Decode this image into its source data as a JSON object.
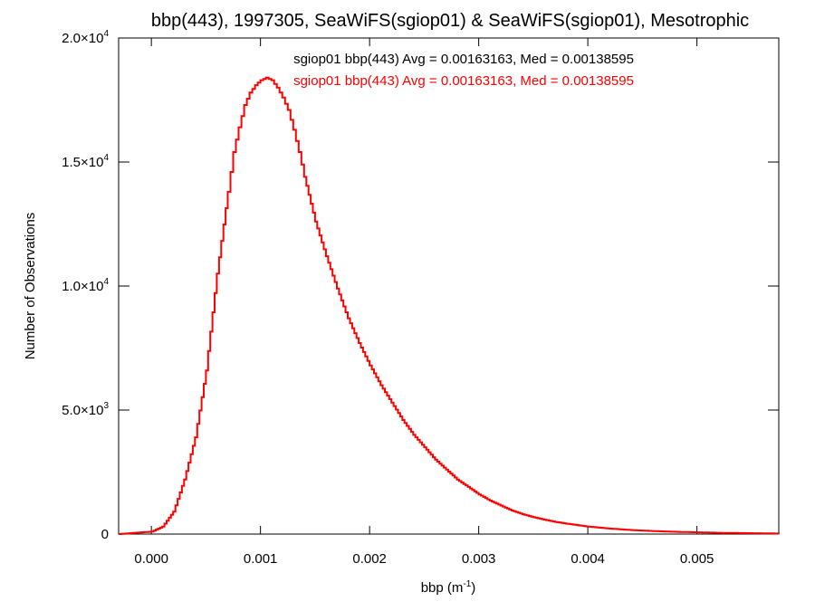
{
  "chart_data": {
    "type": "line",
    "title": "bbp(443), 1997305, SeaWiFS(sgiop01) & SeaWiFS(sgiop01), Mesotrophic",
    "xlabel": "bbp (m",
    "xlabel_sup": "-1",
    "xlabel_close": ")",
    "ylabel": "Number of Observations",
    "xlim": [
      -0.0003,
      0.00575
    ],
    "ylim": [
      0,
      20000
    ],
    "grid": false,
    "x_ticks": [
      {
        "value": 0.0,
        "label": "0.000"
      },
      {
        "value": 0.001,
        "label": "0.001"
      },
      {
        "value": 0.002,
        "label": "0.002"
      },
      {
        "value": 0.003,
        "label": "0.003"
      },
      {
        "value": 0.004,
        "label": "0.004"
      },
      {
        "value": 0.005,
        "label": "0.005"
      }
    ],
    "y_ticks": [
      {
        "value": 0,
        "label": "0",
        "exp": ""
      },
      {
        "value": 5000,
        "label": "5.0×10",
        "exp": "3"
      },
      {
        "value": 10000,
        "label": "1.0×10",
        "exp": "4"
      },
      {
        "value": 15000,
        "label": "1.5×10",
        "exp": "4"
      },
      {
        "value": 20000,
        "label": "2.0×10",
        "exp": "4"
      }
    ],
    "legend": [
      {
        "text": "sgiop01 bbp(443) Avg = 0.00163163, Med = 0.00138595",
        "color": "#000000"
      },
      {
        "text": "sgiop01 bbp(443) Avg = 0.00163163, Med = 0.00138595",
        "color": "#ff0000"
      }
    ],
    "legend_position": "top-center",
    "series": [
      {
        "color": "#ff0000",
        "style": "histogram-step",
        "x": [
          -0.0003,
          0.0,
          0.0001,
          0.0002,
          0.0003,
          0.0004,
          0.0005,
          0.0006,
          0.0007,
          0.00075,
          0.0008,
          0.00085,
          0.0009,
          0.00095,
          0.001,
          0.00105,
          0.0011,
          0.00115,
          0.0012,
          0.00125,
          0.0013,
          0.00135,
          0.0014,
          0.0015,
          0.0016,
          0.0017,
          0.0018,
          0.0019,
          0.002,
          0.0021,
          0.0022,
          0.0023,
          0.0024,
          0.0025,
          0.0026,
          0.0027,
          0.0028,
          0.0029,
          0.003,
          0.0031,
          0.0032,
          0.0033,
          0.0034,
          0.0035,
          0.0036,
          0.0037,
          0.0038,
          0.0039,
          0.004,
          0.0042,
          0.0044,
          0.0046,
          0.0048,
          0.005,
          0.0052,
          0.0054,
          0.0056,
          0.00575
        ],
        "y": [
          0,
          100,
          300,
          900,
          2200,
          3900,
          6600,
          10500,
          13800,
          15400,
          16400,
          17300,
          17800,
          18100,
          18300,
          18400,
          18300,
          18000,
          17600,
          17100,
          16300,
          15400,
          14400,
          12600,
          11200,
          9900,
          8700,
          7700,
          6800,
          6000,
          5300,
          4600,
          4000,
          3500,
          3000,
          2600,
          2200,
          1900,
          1600,
          1350,
          1150,
          950,
          800,
          680,
          580,
          490,
          420,
          360,
          300,
          220,
          160,
          120,
          90,
          70,
          50,
          40,
          30,
          20
        ]
      }
    ]
  }
}
